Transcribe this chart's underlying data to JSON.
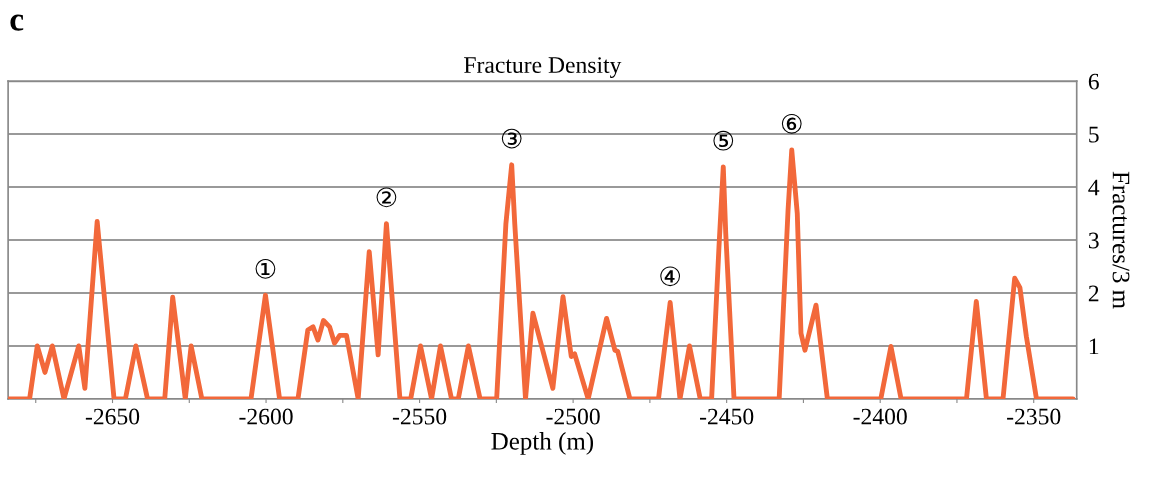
{
  "chart_data": {
    "type": "line",
    "title": "Fracture Density",
    "xlabel": "Depth (m)",
    "ylabel": "Fractures/3 m",
    "x": [
      -2684,
      -2677,
      -2674.5,
      -2672,
      -2669.6,
      -2665.8,
      -2661,
      -2659,
      -2655,
      -2649.5,
      -2645.8,
      -2642.4,
      -2638.6,
      -2633,
      -2630.4,
      -2626.3,
      -2624.4,
      -2620.9,
      -2604.9,
      -2600.2,
      -2595.6,
      -2589.6,
      -2586.4,
      -2584.7,
      -2583.1,
      -2581.3,
      -2579.3,
      -2577.7,
      -2576,
      -2573.8,
      -2570,
      -2566.4,
      -2563.5,
      -2560.8,
      -2556.4,
      -2552.9,
      -2549.7,
      -2546.1,
      -2543.2,
      -2539.6,
      -2537.4,
      -2534.1,
      -2530.3,
      -2524.9,
      -2521.9,
      -2520,
      -2519,
      -2515.5,
      -2513.1,
      -2506.6,
      -2503.3,
      -2500.6,
      -2499.5,
      -2495.1,
      -2489.1,
      -2486.4,
      -2485.5,
      -2481.5,
      -2472.2,
      -2468.4,
      -2465.2,
      -2462.1,
      -2458.6,
      -2454.9,
      -2452.5,
      -2451.1,
      -2450.3,
      -2447.6,
      -2432.9,
      -2430,
      -2428.8,
      -2427,
      -2425.8,
      -2424.5,
      -2420.9,
      -2417.2,
      -2399.8,
      -2396.5,
      -2393.2,
      -2371.9,
      -2368.7,
      -2365.4,
      -2360,
      -2356.2,
      -2354.5,
      -2352.4,
      -2349.1,
      -2337.2
    ],
    "series": [
      {
        "color": "#f2683a",
        "values": [
          0,
          0,
          1,
          0.5,
          1,
          0,
          1,
          0.2,
          3.35,
          0,
          0,
          1,
          0,
          0,
          1.92,
          0,
          1,
          0,
          0,
          1.96,
          0,
          0,
          1.3,
          1.36,
          1.11,
          1.48,
          1.36,
          1.05,
          1.2,
          1.2,
          0,
          2.78,
          0.83,
          3.31,
          0,
          0,
          1,
          0,
          1,
          0,
          0,
          1,
          0,
          0,
          3.3,
          4.42,
          3.3,
          0,
          1.62,
          0.2,
          1.93,
          0.8,
          0.85,
          0,
          1.52,
          0.92,
          0.9,
          0,
          0,
          1.82,
          0,
          1,
          0,
          0,
          2.87,
          4.38,
          3.13,
          0,
          0,
          3.57,
          4.7,
          3.5,
          1.24,
          0.92,
          1.77,
          0,
          0,
          0.99,
          0,
          0,
          1.84,
          0,
          0,
          2.28,
          2.1,
          1.18,
          0,
          0
        ]
      }
    ],
    "xlim": [
      -2684,
      -2336
    ],
    "xticks": [
      {
        "value": -2675,
        "label": null
      },
      -2650,
      {
        "value": -2625,
        "label": null
      },
      -2600,
      {
        "value": -2575,
        "label": null
      },
      -2550,
      {
        "value": -2525,
        "label": null
      },
      -2500,
      {
        "value": -2475,
        "label": null
      },
      -2450,
      {
        "value": -2425,
        "label": null
      },
      -2400,
      {
        "value": -2375,
        "label": null
      },
      -2350
    ],
    "ylim": [
      0,
      6
    ],
    "yticks": [
      1,
      2,
      3,
      4,
      5,
      6
    ],
    "grid": "y",
    "annotations": [
      "c",
      {
        "text": "①",
        "x": -2600.2,
        "y": 1.96
      },
      {
        "text": "②",
        "x": -2560.8,
        "y": 3.31
      },
      {
        "text": "③",
        "x": -2520,
        "y": 4.42
      },
      {
        "text": "④",
        "x": -2468.4,
        "y": 1.82
      },
      {
        "text": "⑤",
        "x": -2451.1,
        "y": 4.38
      },
      {
        "text": "⑥",
        "x": -2428.8,
        "y": 4.7
      }
    ]
  }
}
